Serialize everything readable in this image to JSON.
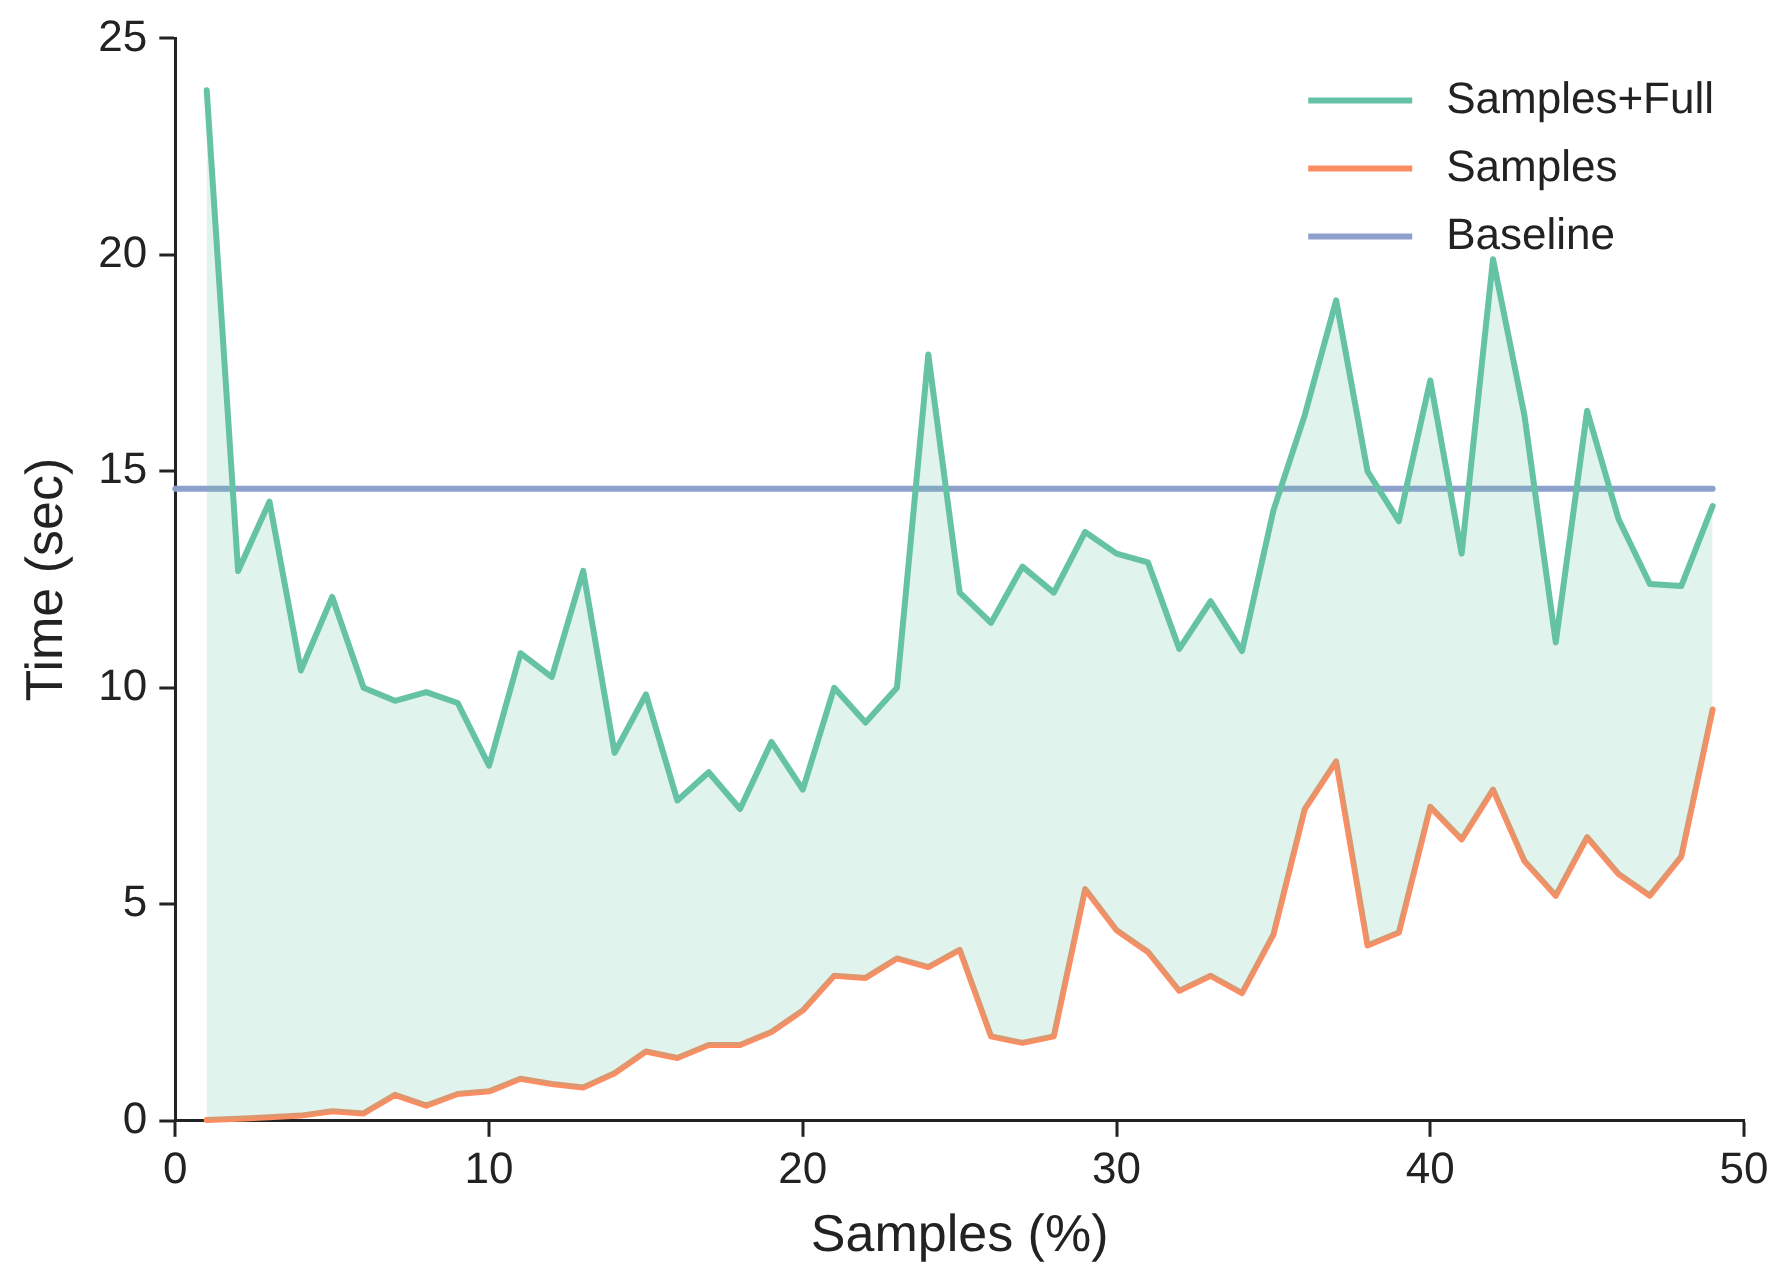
{
  "chart_data": {
    "type": "line",
    "xlabel": "Samples (%)",
    "ylabel": "Time (sec)",
    "x": [
      1,
      2,
      3,
      4,
      5,
      6,
      7,
      8,
      9,
      10,
      11,
      12,
      13,
      14,
      15,
      16,
      17,
      18,
      19,
      20,
      21,
      22,
      23,
      24,
      25,
      26,
      27,
      28,
      29,
      30,
      31,
      32,
      33,
      34,
      35,
      36,
      37,
      38,
      39,
      40,
      41,
      42,
      43,
      44,
      45,
      46,
      47,
      48,
      49
    ],
    "series": [
      {
        "name": "Samples+Full",
        "type": "area",
        "color": "#66c2a5",
        "values": [
          23.8,
          12.7,
          14.3,
          10.4,
          12.1,
          10.0,
          9.7,
          9.9,
          9.65,
          8.2,
          10.8,
          10.25,
          12.7,
          8.5,
          9.85,
          7.4,
          8.05,
          7.2,
          8.75,
          7.65,
          10.0,
          9.2,
          10.0,
          17.7,
          12.2,
          11.5,
          12.8,
          12.2,
          13.6,
          13.1,
          12.9,
          10.9,
          12.0,
          10.85,
          14.1,
          16.3,
          18.95,
          15.0,
          13.85,
          17.1,
          13.1,
          19.9,
          16.3,
          11.05,
          16.4,
          13.9,
          12.4,
          12.35,
          14.2
        ]
      },
      {
        "name": "Samples",
        "color": "#fc8d62",
        "values": [
          0.02,
          0.05,
          0.08,
          0.12,
          0.22,
          0.17,
          0.6,
          0.35,
          0.62,
          0.68,
          0.97,
          0.85,
          0.77,
          1.1,
          1.6,
          1.45,
          1.75,
          1.75,
          2.05,
          2.55,
          3.35,
          3.3,
          3.75,
          3.55,
          3.95,
          1.95,
          1.8,
          1.95,
          5.35,
          4.4,
          3.9,
          3.0,
          3.35,
          2.95,
          4.3,
          7.2,
          8.3,
          4.05,
          4.35,
          7.25,
          6.5,
          7.65,
          6.0,
          5.2,
          6.55,
          5.7,
          5.2,
          6.1,
          9.5
        ]
      },
      {
        "name": "Baseline",
        "color": "#8da0cb",
        "x": [
          0,
          49
        ],
        "values": [
          14.6,
          14.6
        ]
      }
    ],
    "xlim": [
      0,
      50
    ],
    "xticks": [
      0,
      10,
      20,
      30,
      40,
      50
    ],
    "ylim": [
      0,
      25
    ],
    "yticks": [
      0,
      5,
      10,
      15,
      20,
      25
    ],
    "grid": false,
    "legend": "top right",
    "marker": "none",
    "line_style": "solid"
  }
}
